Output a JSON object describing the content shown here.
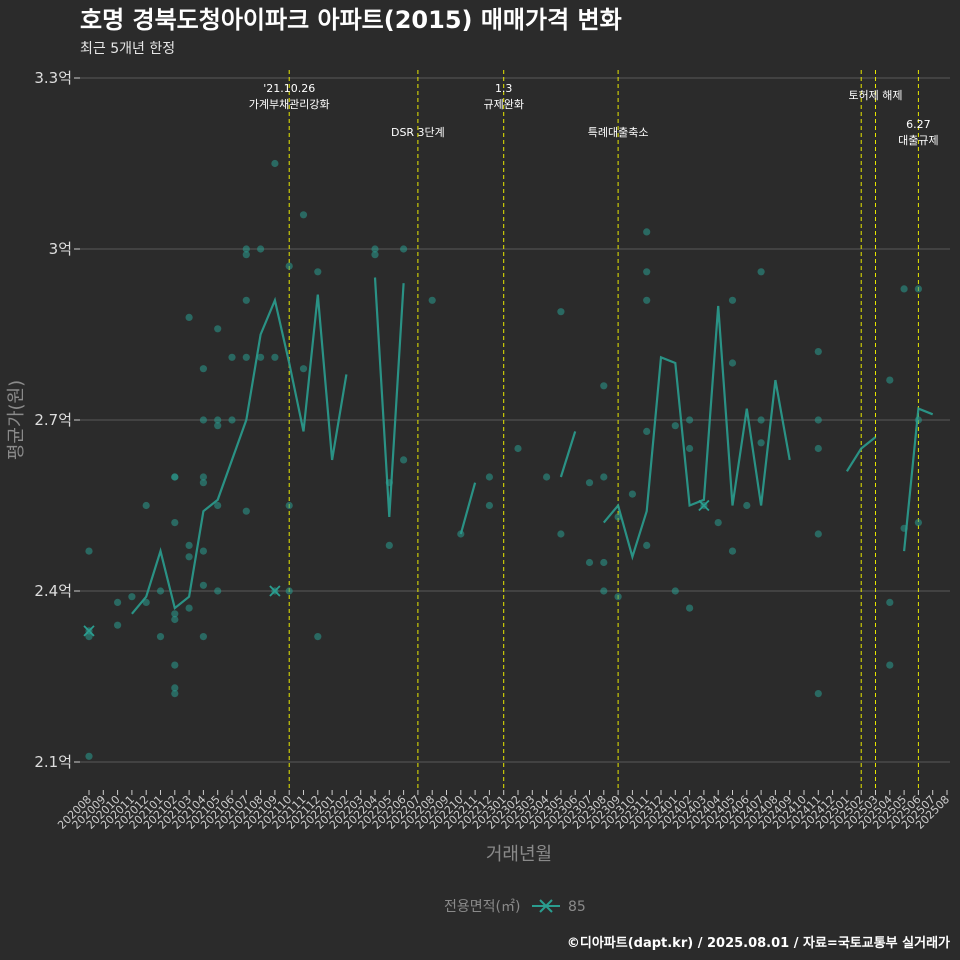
{
  "chart_data": {
    "type": "line",
    "title": "호명 경북도청아이파크 아파트(2015) 매매가격 변화",
    "subtitle": "최근 5개년 한정",
    "xlabel": "거래년월",
    "ylabel": "평균가(원)",
    "caption": "©디아파트(dapt.kr) / 2025.08.01 / 자료=국토교통부 실거래가",
    "legend": {
      "title": "전용면적(㎡)",
      "placement": "bottom"
    },
    "ylim": [
      2.0,
      3.3
    ],
    "yticks": [
      {
        "value": 2.1,
        "label": "2.1억"
      },
      {
        "value": 2.4,
        "label": "2.4억"
      },
      {
        "value": 2.7,
        "label": "2.7억"
      },
      {
        "value": 3.0,
        "label": "3억"
      },
      {
        "value": 3.3,
        "label": "3.3억"
      }
    ],
    "categories": [
      "202008",
      "202009",
      "202010",
      "202011",
      "202012",
      "202101",
      "202102",
      "202103",
      "202104",
      "202105",
      "202106",
      "202107",
      "202108",
      "202109",
      "202110",
      "202111",
      "202112",
      "202201",
      "202202",
      "202203",
      "202204",
      "202205",
      "202206",
      "202207",
      "202208",
      "202209",
      "202210",
      "202211",
      "202212",
      "202301",
      "202302",
      "202303",
      "202304",
      "202305",
      "202306",
      "202307",
      "202308",
      "202309",
      "202310",
      "202311",
      "202312",
      "202401",
      "202402",
      "202403",
      "202404",
      "202405",
      "202406",
      "202407",
      "202408",
      "202409",
      "202410",
      "202411",
      "202412",
      "202501",
      "202502",
      "202503",
      "202504",
      "202505",
      "202506",
      "202507",
      "202508"
    ],
    "annotations": [
      {
        "x": "202110",
        "line1": "'21.10.26",
        "line2": "가계부채관리강화",
        "level": 0
      },
      {
        "x": "202207",
        "line1": "DSR 3단계",
        "line2": "",
        "level": 1
      },
      {
        "x": "202301",
        "line1": "1.3",
        "line2": "규제완화",
        "level": 0
      },
      {
        "x": "202309",
        "line1": "특례대출축소",
        "line2": "",
        "level": 1
      },
      {
        "x": "202502",
        "line1": "",
        "line2": "",
        "level": 0
      },
      {
        "x": "202503",
        "line1": "토허제 해제",
        "line2": "",
        "level": 2
      },
      {
        "x": "202506",
        "line1": "6.27",
        "line2": "대출규제",
        "level": 3
      }
    ],
    "series": [
      {
        "name": "85",
        "color": "#2a9d8f",
        "mean": [
          2.33,
          null,
          null,
          2.36,
          2.39,
          2.47,
          2.37,
          2.39,
          2.54,
          2.56,
          2.63,
          2.7,
          2.85,
          2.91,
          2.8,
          2.68,
          2.92,
          2.63,
          2.78,
          null,
          2.95,
          2.53,
          2.94,
          null,
          null,
          null,
          2.5,
          2.59,
          null,
          null,
          null,
          null,
          null,
          2.6,
          2.68,
          null,
          2.52,
          2.55,
          2.46,
          2.54,
          2.81,
          2.8,
          2.55,
          2.56,
          2.9,
          2.55,
          2.72,
          2.55,
          2.77,
          2.63,
          null,
          null,
          null,
          2.61,
          2.65,
          2.67,
          null,
          2.47,
          2.72,
          2.71,
          null
        ],
        "points": [
          [
            "202008",
            2.47
          ],
          [
            "202008",
            2.33
          ],
          [
            "202008",
            2.32
          ],
          [
            "202008",
            2.11
          ],
          [
            "202010",
            2.38
          ],
          [
            "202010",
            2.34
          ],
          [
            "202011",
            2.39
          ],
          [
            "202012",
            2.38
          ],
          [
            "202012",
            2.55
          ],
          [
            "202101",
            2.4
          ],
          [
            "202101",
            2.32
          ],
          [
            "202102",
            2.36
          ],
          [
            "202102",
            2.35
          ],
          [
            "202102",
            2.52
          ],
          [
            "202102",
            2.6
          ],
          [
            "202102",
            2.6
          ],
          [
            "202102",
            2.27
          ],
          [
            "202102",
            2.23
          ],
          [
            "202102",
            2.22
          ],
          [
            "202103",
            2.48
          ],
          [
            "202103",
            2.46
          ],
          [
            "202103",
            2.37
          ],
          [
            "202103",
            2.88
          ],
          [
            "202104",
            2.6
          ],
          [
            "202104",
            2.59
          ],
          [
            "202104",
            2.47
          ],
          [
            "202104",
            2.41
          ],
          [
            "202104",
            2.32
          ],
          [
            "202104",
            2.7
          ],
          [
            "202104",
            2.79
          ],
          [
            "202105",
            2.55
          ],
          [
            "202105",
            2.69
          ],
          [
            "202105",
            2.7
          ],
          [
            "202105",
            2.4
          ],
          [
            "202105",
            2.86
          ],
          [
            "202106",
            2.81
          ],
          [
            "202106",
            2.7
          ],
          [
            "202107",
            2.54
          ],
          [
            "202107",
            3.0
          ],
          [
            "202107",
            2.99
          ],
          [
            "202107",
            2.81
          ],
          [
            "202107",
            2.91
          ],
          [
            "202108",
            2.81
          ],
          [
            "202108",
            3.0
          ],
          [
            "202109",
            2.4
          ],
          [
            "202109",
            2.81
          ],
          [
            "202109",
            3.15
          ],
          [
            "202110",
            2.97
          ],
          [
            "202110",
            2.55
          ],
          [
            "202110",
            2.4
          ],
          [
            "202111",
            3.06
          ],
          [
            "202111",
            2.79
          ],
          [
            "202112",
            2.96
          ],
          [
            "202112",
            2.32
          ],
          [
            "202204",
            3.0
          ],
          [
            "202204",
            2.99
          ],
          [
            "202205",
            2.48
          ],
          [
            "202205",
            2.59
          ],
          [
            "202206",
            3.0
          ],
          [
            "202206",
            2.63
          ],
          [
            "202208",
            2.91
          ],
          [
            "202210",
            2.5
          ],
          [
            "202212",
            2.6
          ],
          [
            "202212",
            2.55
          ],
          [
            "202302",
            2.65
          ],
          [
            "202304",
            2.6
          ],
          [
            "202305",
            2.89
          ],
          [
            "202305",
            2.5
          ],
          [
            "202307",
            2.59
          ],
          [
            "202307",
            2.45
          ],
          [
            "202308",
            2.6
          ],
          [
            "202308",
            2.76
          ],
          [
            "202308",
            2.4
          ],
          [
            "202308",
            2.45
          ],
          [
            "202309",
            2.53
          ],
          [
            "202309",
            2.39
          ],
          [
            "202310",
            2.57
          ],
          [
            "202311",
            3.03
          ],
          [
            "202311",
            2.96
          ],
          [
            "202311",
            2.91
          ],
          [
            "202311",
            2.68
          ],
          [
            "202311",
            2.48
          ],
          [
            "202401",
            2.69
          ],
          [
            "202401",
            2.4
          ],
          [
            "202402",
            2.65
          ],
          [
            "202402",
            2.7
          ],
          [
            "202402",
            2.37
          ],
          [
            "202403",
            2.55
          ],
          [
            "202404",
            2.52
          ],
          [
            "202405",
            2.91
          ],
          [
            "202405",
            2.8
          ],
          [
            "202405",
            2.47
          ],
          [
            "202406",
            2.55
          ],
          [
            "202407",
            2.96
          ],
          [
            "202407",
            2.66
          ],
          [
            "202407",
            2.7
          ],
          [
            "202411",
            2.82
          ],
          [
            "202411",
            2.7
          ],
          [
            "202411",
            2.65
          ],
          [
            "202411",
            2.5
          ],
          [
            "202411",
            2.22
          ],
          [
            "202504",
            2.77
          ],
          [
            "202504",
            2.38
          ],
          [
            "202504",
            2.27
          ],
          [
            "202505",
            2.93
          ],
          [
            "202505",
            2.51
          ],
          [
            "202506",
            2.93
          ],
          [
            "202506",
            2.7
          ],
          [
            "202506",
            2.52
          ]
        ],
        "crosses": [
          [
            "202008",
            2.33
          ],
          [
            "202109",
            2.4
          ],
          [
            "202403",
            2.55
          ]
        ]
      }
    ]
  }
}
